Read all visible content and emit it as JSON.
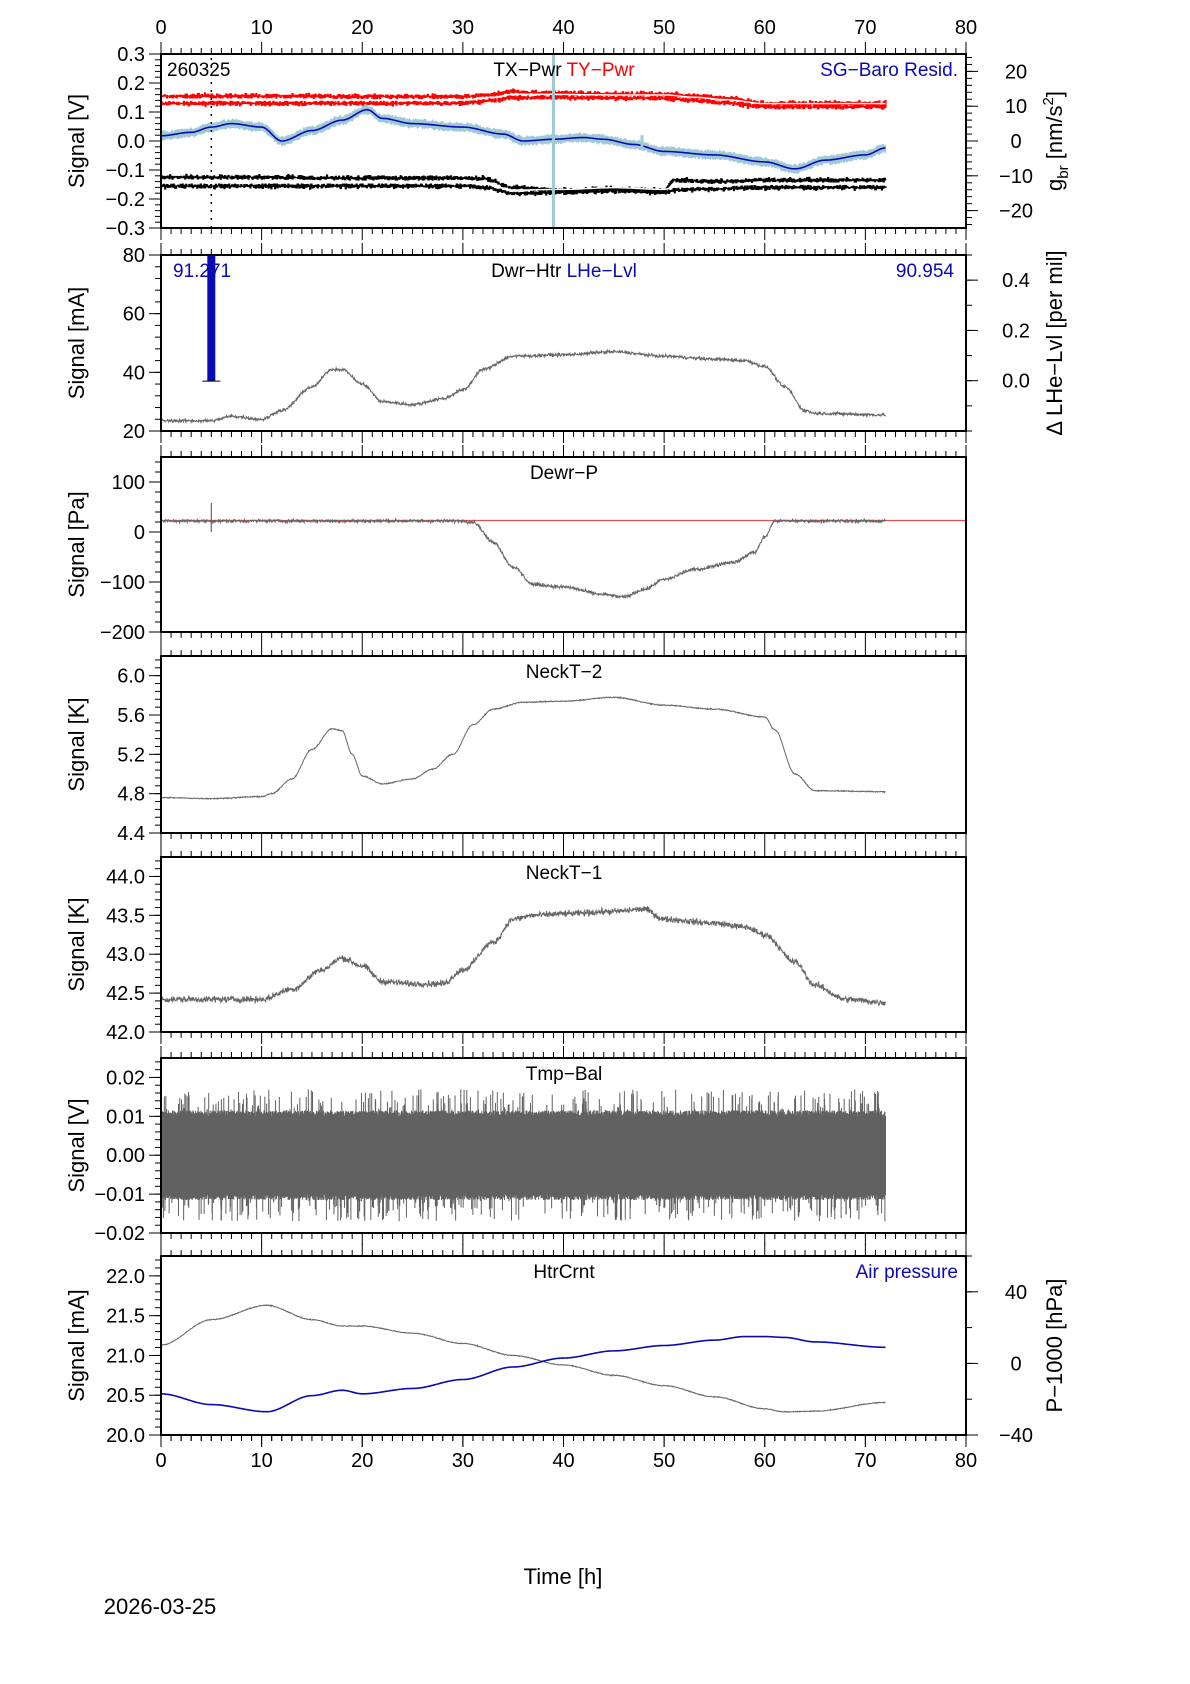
{
  "chart_data": {
    "type": "line",
    "title": "",
    "date_label": "2026-03-25",
    "xlabel": "Time [h]",
    "xlim": [
      0,
      80
    ],
    "xticks": [
      0,
      10,
      20,
      30,
      40,
      50,
      60,
      70,
      80
    ],
    "data_end_h": 72,
    "panels": [
      {
        "id": "pwr",
        "ylabel": "Signal [V]",
        "ylim": [
          -0.3,
          0.3
        ],
        "yticks": [
          0.3,
          0.2,
          0.1,
          0.0,
          -0.1,
          -0.2,
          -0.3
        ],
        "ytick_labels": [
          "0.3",
          "0.2",
          "0.1",
          "0.0",
          "−0.1",
          "−0.2",
          "−0.3"
        ],
        "corner_label": "260325",
        "labels": [
          {
            "text": "TX−Pwr",
            "color": "#000000"
          },
          {
            "text": "TY−Pwr",
            "color": "#ff0000"
          },
          {
            "text": "SG−Baro Resid.",
            "color": "#0a0ab4"
          }
        ],
        "right_axis": {
          "ylabel": "g_br [nm/s²]",
          "ylabel_main": "g",
          "ylabel_sub": "br",
          "ylabel_unit": " [nm/s",
          "ylabel_sup": "2",
          "ylabel_end": "]",
          "ylim": [
            -25,
            25
          ],
          "yticks": [
            20,
            10,
            0,
            -10,
            -20
          ],
          "ytick_labels": [
            "20",
            "10",
            "0",
            "−10",
            "−20"
          ],
          "color": "#0a0ab4"
        },
        "series": [
          {
            "name": "TY-Pwr upper",
            "color": "#ff0000",
            "style": "scatter-band",
            "x": [
              0,
              10,
              20,
              30,
              33,
              35,
              38,
              45,
              50,
              53,
              56,
              60,
              65,
              72
            ],
            "y": [
              0.155,
              0.155,
              0.153,
              0.153,
              0.16,
              0.17,
              0.165,
              0.162,
              0.162,
              0.155,
              0.148,
              0.13,
              0.13,
              0.13
            ],
            "spread": 0.02
          },
          {
            "name": "TY-Pwr lower",
            "color": "#ff0000",
            "style": "scatter-band",
            "x": [
              0,
              10,
              20,
              30,
              33,
              35,
              38,
              45,
              50,
              53,
              56,
              60,
              65,
              72
            ],
            "y": [
              0.13,
              0.13,
              0.13,
              0.13,
              0.14,
              0.15,
              0.15,
              0.148,
              0.148,
              0.14,
              0.132,
              0.118,
              0.118,
              0.118
            ],
            "spread": 0.02
          },
          {
            "name": "TX-Pwr upper",
            "color": "#000000",
            "style": "scatter-band",
            "x": [
              0,
              10,
              20,
              30,
              32,
              35,
              40,
              45,
              50,
              51,
              55,
              60,
              65,
              72
            ],
            "y": [
              -0.125,
              -0.125,
              -0.128,
              -0.128,
              -0.13,
              -0.16,
              -0.17,
              -0.165,
              -0.17,
              -0.135,
              -0.14,
              -0.135,
              -0.135,
              -0.135
            ],
            "spread": 0.02
          },
          {
            "name": "TX-Pwr lower",
            "color": "#000000",
            "style": "scatter-band",
            "x": [
              0,
              10,
              20,
              30,
              32,
              35,
              40,
              45,
              50,
              51,
              55,
              60,
              65,
              72
            ],
            "y": [
              -0.155,
              -0.155,
              -0.155,
              -0.155,
              -0.16,
              -0.18,
              -0.178,
              -0.172,
              -0.178,
              -0.17,
              -0.165,
              -0.16,
              -0.16,
              -0.16
            ],
            "spread": 0.02
          },
          {
            "name": "SG-Baro Resid. raw",
            "color": "#9ec9d6",
            "axis": "right",
            "style": "band",
            "x": [
              0,
              3,
              5,
              7,
              10,
              12,
              15,
              18,
              20.5,
              22,
              25,
              30,
              34,
              36,
              39,
              42,
              44,
              47,
              50,
              55,
              60,
              63,
              66,
              70,
              72
            ],
            "y": [
              1.5,
              2.5,
              4,
              5,
              4,
              0,
              3,
              6,
              9,
              6.5,
              5,
              4,
              2,
              0,
              0.5,
              1,
              0.5,
              -1,
              -3,
              -4,
              -6,
              -8,
              -5.5,
              -4,
              -2
            ],
            "spread": 1.2
          },
          {
            "name": "SG-Baro Resid. smooth",
            "color": "#0a0ab4",
            "axis": "right",
            "style": "line",
            "x": [
              0,
              3,
              5,
              7,
              10,
              12,
              15,
              18,
              20.5,
              22,
              25,
              30,
              34,
              36,
              39,
              42,
              44,
              47,
              50,
              55,
              60,
              63,
              66,
              70,
              72
            ],
            "y": [
              1.5,
              2.5,
              4,
              5,
              4,
              0,
              3,
              6,
              9,
              6.5,
              5,
              4,
              2,
              0,
              0.5,
              1,
              0.5,
              -1,
              -3,
              -4,
              -6,
              -8,
              -5.5,
              -4,
              -2
            ]
          }
        ],
        "spikes": [
          {
            "x": 5,
            "ymin": -0.3,
            "ymax": 0.3,
            "color": "#000000"
          },
          {
            "x": 39,
            "ymin": -0.3,
            "ymax": 0.3,
            "color": "#9ec9d6"
          },
          {
            "x": 47.8,
            "ymin": -0.02,
            "ymax": 0.02,
            "color": "#9ec9d6"
          }
        ]
      },
      {
        "id": "dwr-htr",
        "ylabel": "Signal [mA]",
        "ylim": [
          20,
          80
        ],
        "yticks": [
          80,
          60,
          40,
          20
        ],
        "ytick_labels": [
          "80",
          "60",
          "40",
          "20"
        ],
        "labels": [
          {
            "text": "Dwr−Htr",
            "color": "#000000"
          },
          {
            "text": "LHe−Lvl",
            "color": "#0a0ab4"
          }
        ],
        "value_left": "91.271",
        "value_right": "90.954",
        "right_axis": {
          "ylabel": "Δ LHe−Lvl [per mil]",
          "ylim": [
            -0.2,
            0.5
          ],
          "yticks": [
            0.4,
            0.2,
            0.0
          ],
          "ytick_labels": [
            "0.4",
            "0.2",
            "0.0"
          ],
          "color": "#000000"
        },
        "lhe_bar": {
          "x": 5,
          "ymin": 37,
          "ymax": 80,
          "color": "#0a0ab4"
        },
        "series": [
          {
            "name": "Dwr-Htr",
            "color": "#666666",
            "style": "noisy",
            "x": [
              0,
              5,
              7,
              10,
              12,
              15,
              17,
              18,
              20,
              22,
              25,
              28,
              30,
              32,
              35,
              40,
              45,
              50,
              55,
              58,
              60,
              62,
              64,
              65,
              72
            ],
            "y": [
              23.5,
              23.5,
              25,
              24,
              27,
              35,
              41,
              41,
              36,
              30,
              29,
              31,
              34,
              41,
              45.5,
              46,
              47,
              45.5,
              44.5,
              44,
              42,
              35,
              27,
              26,
              25.5
            ],
            "noise": 0.8
          }
        ]
      },
      {
        "id": "dewr-p",
        "ylabel": "Signal [Pa]",
        "ylim": [
          -200,
          150
        ],
        "yticks": [
          100,
          0,
          -100,
          -200
        ],
        "ytick_labels": [
          "100",
          "0",
          "−100",
          "−200"
        ],
        "labels": [
          {
            "text": "Dewr−P",
            "color": "#000000"
          }
        ],
        "reference_line": {
          "y": 23,
          "color": "#e05050"
        },
        "series": [
          {
            "name": "Dewr-P",
            "color": "#666666",
            "style": "noisy",
            "x": [
              0,
              10,
              20,
              30,
              31,
              33,
              35,
              37,
              40,
              44,
              46,
              48,
              50,
              53,
              57,
              59,
              60,
              61,
              65,
              72
            ],
            "y": [
              22,
              22,
              22,
              22,
              20,
              -20,
              -70,
              -105,
              -110,
              -125,
              -130,
              -115,
              -95,
              -75,
              -60,
              -40,
              -10,
              22,
              22,
              22
            ],
            "noise": 5
          },
          {
            "name": "Dewr-P spike",
            "color": "#666666",
            "style": "spike",
            "x": [
              5
            ],
            "ymin": [
              0
            ],
            "ymax": [
              58
            ]
          }
        ]
      },
      {
        "id": "neckt-2",
        "ylabel": "Signal [K]",
        "ylim": [
          4.4,
          6.2
        ],
        "yticks": [
          6.0,
          5.6,
          5.2,
          4.8,
          4.4
        ],
        "ytick_labels": [
          "6.0",
          "5.6",
          "5.2",
          "4.8",
          "4.4"
        ],
        "labels": [
          {
            "text": "NeckT−2",
            "color": "#000000"
          }
        ],
        "series": [
          {
            "name": "NeckT-2",
            "color": "#666666",
            "style": "noisy",
            "x": [
              0,
              5,
              10,
              11,
              13,
              15,
              17,
              18,
              19,
              20,
              22,
              25,
              27,
              29,
              31,
              33,
              36,
              40,
              45,
              50,
              55,
              60,
              61,
              63,
              65,
              72
            ],
            "y": [
              4.76,
              4.75,
              4.77,
              4.8,
              4.95,
              5.25,
              5.46,
              5.44,
              5.2,
              4.98,
              4.9,
              4.95,
              5.05,
              5.2,
              5.5,
              5.66,
              5.73,
              5.74,
              5.78,
              5.7,
              5.66,
              5.58,
              5.45,
              5.0,
              4.83,
              4.82
            ],
            "noise": 0.008
          }
        ]
      },
      {
        "id": "neckt-1",
        "ylabel": "Signal [K]",
        "ylim": [
          42.0,
          44.25
        ],
        "yticks": [
          44.0,
          43.5,
          43.0,
          42.5,
          42.0
        ],
        "ytick_labels": [
          "44.0",
          "43.5",
          "43.0",
          "42.5",
          "42.0"
        ],
        "labels": [
          {
            "text": "NeckT−1",
            "color": "#000000"
          }
        ],
        "series": [
          {
            "name": "NeckT-1",
            "color": "#666666",
            "style": "noisy",
            "x": [
              0,
              5,
              10,
              13,
              16,
              18,
              20,
              22,
              25,
              28,
              30,
              33,
              35,
              37,
              40,
              45,
              48,
              50,
              55,
              58,
              60,
              63,
              65,
              68,
              72
            ],
            "y": [
              42.42,
              42.42,
              42.42,
              42.55,
              42.8,
              42.95,
              42.85,
              42.65,
              42.62,
              42.62,
              42.8,
              43.15,
              43.45,
              43.5,
              43.52,
              43.55,
              43.58,
              43.45,
              43.4,
              43.35,
              43.25,
              42.9,
              42.6,
              42.42,
              42.38
            ],
            "noise": 0.06
          }
        ]
      },
      {
        "id": "tmp-bal",
        "ylabel": "Signal [V]",
        "ylim": [
          -0.02,
          0.025
        ],
        "yticks": [
          0.02,
          0.01,
          0.0,
          -0.01,
          -0.02
        ],
        "ytick_labels": [
          "0.02",
          "0.01",
          "0.00",
          "−0.01",
          "−0.02"
        ],
        "labels": [
          {
            "text": "Tmp−Bal",
            "color": "#000000"
          }
        ],
        "series": [
          {
            "name": "Tmp-Bal",
            "color": "#616161",
            "style": "noise-fill",
            "x": [
              0,
              72
            ],
            "amplitude": 0.011,
            "peak": 0.017
          }
        ]
      },
      {
        "id": "htrcrnt",
        "ylabel": "Signal [mA]",
        "ylim": [
          20.0,
          22.25
        ],
        "yticks": [
          22.0,
          21.5,
          21.0,
          20.5,
          20.0
        ],
        "ytick_labels": [
          "22.0",
          "21.5",
          "21.0",
          "20.5",
          "20.0"
        ],
        "labels": [
          {
            "text": "HtrCrnt",
            "color": "#000000"
          },
          {
            "text": "Air pressure",
            "color": "#0a0ab4"
          }
        ],
        "right_axis": {
          "ylabel": "P−1000 [hPa]",
          "ylim": [
            -40,
            60
          ],
          "yticks": [
            40,
            0,
            -40
          ],
          "ytick_labels": [
            "40",
            "0",
            "−40"
          ],
          "color": "#0a0ab4"
        },
        "series": [
          {
            "name": "HtrCrnt",
            "color": "#666666",
            "style": "noisy",
            "x": [
              0,
              5,
              10.5,
              15,
              18,
              20,
              25,
              30,
              35,
              40,
              45,
              50,
              55,
              60,
              62,
              65,
              72
            ],
            "y": [
              21.13,
              21.45,
              21.63,
              21.45,
              21.37,
              21.37,
              21.28,
              21.15,
              21.0,
              20.88,
              20.75,
              20.62,
              20.48,
              20.33,
              20.29,
              20.3,
              20.41
            ],
            "noise": 0.008
          },
          {
            "name": "Air pressure",
            "color": "#0a0ab4",
            "axis": "right",
            "style": "line",
            "x": [
              0,
              5,
              10.5,
              15,
              18,
              20,
              25,
              30,
              35,
              40,
              45,
              50,
              55,
              58,
              60,
              62,
              65,
              72
            ],
            "y": [
              -17,
              -23,
              -27,
              -18,
              -15,
              -17,
              -14,
              -9,
              -2,
              3,
              7,
              10,
              13,
              15,
              15,
              14.5,
              12,
              9
            ]
          }
        ]
      }
    ]
  }
}
